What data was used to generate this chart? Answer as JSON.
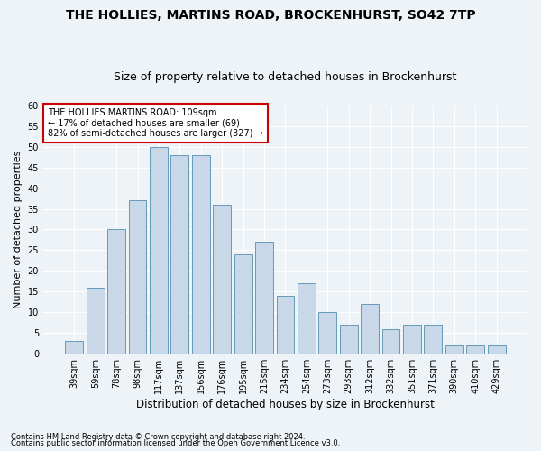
{
  "title": "THE HOLLIES, MARTINS ROAD, BROCKENHURST, SO42 7TP",
  "subtitle": "Size of property relative to detached houses in Brockenhurst",
  "xlabel": "Distribution of detached houses by size in Brockenhurst",
  "ylabel": "Number of detached properties",
  "categories": [
    "39sqm",
    "59sqm",
    "78sqm",
    "98sqm",
    "117sqm",
    "137sqm",
    "156sqm",
    "176sqm",
    "195sqm",
    "215sqm",
    "234sqm",
    "254sqm",
    "273sqm",
    "293sqm",
    "312sqm",
    "332sqm",
    "351sqm",
    "371sqm",
    "390sqm",
    "410sqm",
    "429sqm"
  ],
  "values": [
    3,
    16,
    30,
    37,
    50,
    48,
    48,
    36,
    24,
    27,
    14,
    17,
    10,
    7,
    12,
    6,
    7,
    7,
    2,
    2,
    2
  ],
  "bar_color": "#c8d8e8",
  "bar_edge_color": "#6699bb",
  "annotation_line1": "THE HOLLIES MARTINS ROAD: 109sqm",
  "annotation_line2": "← 17% of detached houses are smaller (69)",
  "annotation_line3": "82% of semi-detached houses are larger (327) →",
  "annotation_box_color": "#ffffff",
  "annotation_box_edge_color": "#cc0000",
  "footnote1": "Contains HM Land Registry data © Crown copyright and database right 2024.",
  "footnote2": "Contains public sector information licensed under the Open Government Licence v3.0.",
  "ylim": [
    0,
    60
  ],
  "yticks": [
    0,
    5,
    10,
    15,
    20,
    25,
    30,
    35,
    40,
    45,
    50,
    55,
    60
  ],
  "background_color": "#eef3f8",
  "title_fontsize": 10,
  "subtitle_fontsize": 9,
  "ylabel_fontsize": 8,
  "xlabel_fontsize": 8.5,
  "tick_fontsize": 7,
  "annot_fontsize": 7,
  "footnote_fontsize": 6
}
